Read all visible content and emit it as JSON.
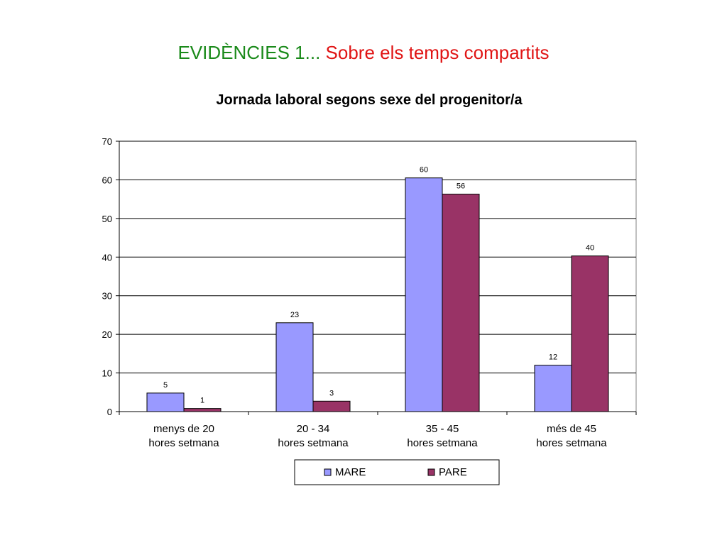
{
  "slide": {
    "title_part1": "EVIDÈNCIES 1...",
    "title_part2": "Sobre els temps compartits",
    "title_part1_color": "#1a8a1a",
    "title_part2_color": "#e01414"
  },
  "chart_data": {
    "type": "bar",
    "title": "Jornada laboral segons sexe del progenitor/a",
    "xlabel": "",
    "ylabel": "",
    "categories": [
      [
        "menys de 20",
        "hores setmana"
      ],
      [
        "20 - 34",
        "hores setmana"
      ],
      [
        "35 - 45",
        "hores setmana"
      ],
      [
        "més de 45",
        "hores setmana"
      ]
    ],
    "series": [
      {
        "name": "MARE",
        "color": "#9999ff",
        "values": [
          5,
          23,
          60,
          12
        ]
      },
      {
        "name": "PARE",
        "color": "#993366",
        "values": [
          1,
          3,
          56,
          40
        ]
      }
    ],
    "plotted_values": [
      [
        4.8,
        23,
        60.5,
        12
      ],
      [
        0.8,
        2.7,
        56.3,
        40.3
      ]
    ],
    "ylim": [
      0,
      70
    ],
    "yticks": [
      0,
      10,
      20,
      30,
      40,
      50,
      60,
      70
    ],
    "grid": true,
    "legend_position": "bottom"
  }
}
